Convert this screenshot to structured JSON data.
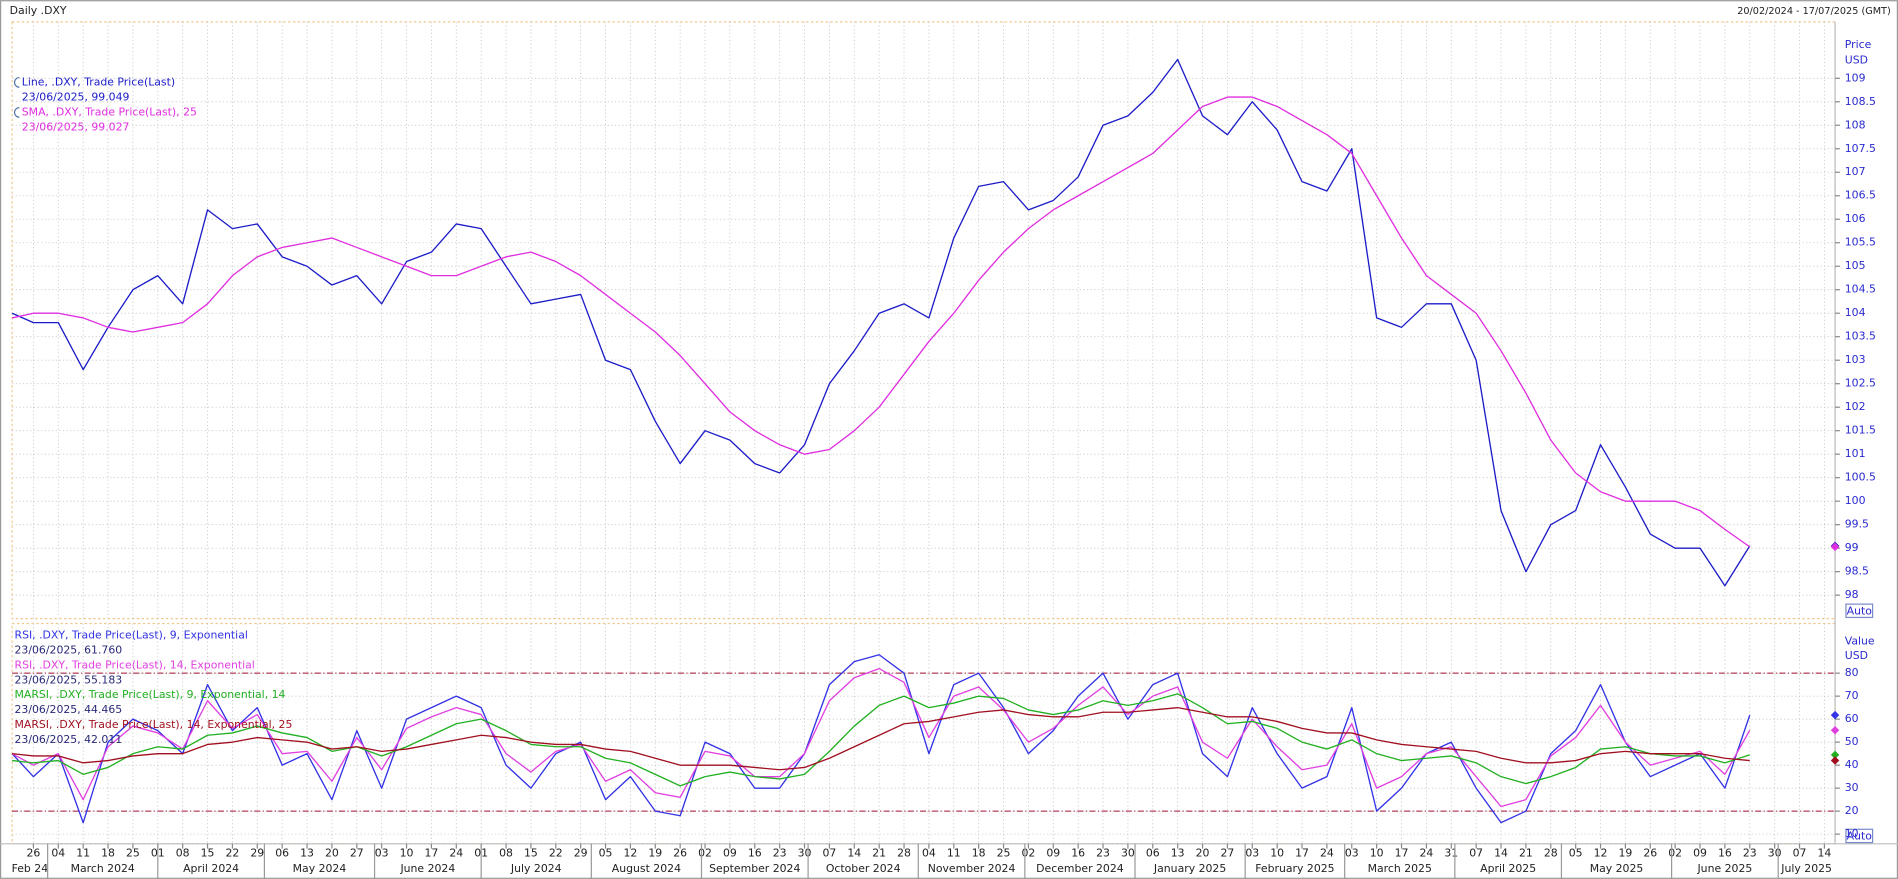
{
  "chart_data": [
    {
      "type": "line",
      "title": "Daily .DXY",
      "subtitle": "20/02/2024 - 17/07/2025 (GMT)",
      "y_label": "Price",
      "y_unit": "USD",
      "scale_button": "Auto",
      "xlim": [
        "2024-02-20",
        "2025-07-17"
      ],
      "ylim": [
        97.5,
        110.2
      ],
      "grid": true,
      "yticks": [
        98,
        98.5,
        99,
        99.5,
        100,
        100.5,
        101,
        101.5,
        102,
        102.5,
        103,
        103.5,
        104,
        104.5,
        105,
        105.5,
        106,
        106.5,
        107,
        107.5,
        108,
        108.5,
        109
      ],
      "x": [
        "2024-02-20",
        "2024-02-26",
        "2024-03-04",
        "2024-03-11",
        "2024-03-18",
        "2024-03-25",
        "2024-04-01",
        "2024-04-08",
        "2024-04-15",
        "2024-04-22",
        "2024-04-29",
        "2024-05-06",
        "2024-05-13",
        "2024-05-20",
        "2024-05-27",
        "2024-06-03",
        "2024-06-10",
        "2024-06-17",
        "2024-06-24",
        "2024-07-01",
        "2024-07-08",
        "2024-07-15",
        "2024-07-22",
        "2024-07-29",
        "2024-08-05",
        "2024-08-12",
        "2024-08-19",
        "2024-08-26",
        "2024-09-02",
        "2024-09-09",
        "2024-09-16",
        "2024-09-23",
        "2024-09-30",
        "2024-10-07",
        "2024-10-14",
        "2024-10-21",
        "2024-10-28",
        "2024-11-04",
        "2024-11-11",
        "2024-11-18",
        "2024-11-25",
        "2024-12-02",
        "2024-12-09",
        "2024-12-16",
        "2024-12-23",
        "2024-12-30",
        "2025-01-06",
        "2025-01-13",
        "2025-01-20",
        "2025-01-27",
        "2025-02-03",
        "2025-02-10",
        "2025-02-17",
        "2025-02-24",
        "2025-03-03",
        "2025-03-10",
        "2025-03-17",
        "2025-03-24",
        "2025-03-31",
        "2025-04-07",
        "2025-04-14",
        "2025-04-21",
        "2025-04-28",
        "2025-05-05",
        "2025-05-12",
        "2025-05-19",
        "2025-05-26",
        "2025-06-02",
        "2025-06-09",
        "2025-06-16",
        "2025-06-23"
      ],
      "series": [
        {
          "name": "Line, .DXY, Trade Price(Last)",
          "legend_detail": "23/06/2025, 99.049",
          "color": "#1c1cc8",
          "values": [
            104.0,
            103.8,
            103.8,
            102.8,
            103.7,
            104.5,
            104.8,
            104.2,
            106.2,
            105.8,
            105.9,
            105.2,
            105.0,
            104.6,
            104.8,
            104.2,
            105.1,
            105.3,
            105.9,
            105.8,
            105.0,
            104.2,
            104.3,
            104.4,
            103.0,
            102.8,
            101.7,
            100.8,
            101.5,
            101.3,
            100.8,
            100.6,
            101.2,
            102.5,
            103.2,
            104.0,
            104.2,
            103.9,
            105.6,
            106.7,
            106.8,
            106.2,
            106.4,
            106.9,
            108.0,
            108.2,
            108.7,
            109.4,
            108.2,
            107.8,
            108.5,
            107.9,
            106.8,
            106.6,
            107.5,
            103.9,
            103.7,
            104.2,
            104.2,
            103.0,
            99.8,
            98.5,
            99.5,
            99.8,
            101.2,
            100.3,
            99.3,
            99.0,
            99.0,
            98.2,
            99.049
          ]
        },
        {
          "name": "SMA, .DXY, Trade Price(Last), 25",
          "legend_detail": "23/06/2025, 99.027",
          "color": "#e02ee0",
          "values": [
            103.9,
            104.0,
            104.0,
            103.9,
            103.7,
            103.6,
            103.7,
            103.8,
            104.2,
            104.8,
            105.2,
            105.4,
            105.5,
            105.6,
            105.4,
            105.2,
            105.0,
            104.8,
            104.8,
            105.0,
            105.2,
            105.3,
            105.1,
            104.8,
            104.4,
            104.0,
            103.6,
            103.1,
            102.5,
            101.9,
            101.5,
            101.2,
            101.0,
            101.1,
            101.5,
            102.0,
            102.7,
            103.4,
            104.0,
            104.7,
            105.3,
            105.8,
            106.2,
            106.5,
            106.8,
            107.1,
            107.4,
            107.9,
            108.4,
            108.6,
            108.6,
            108.4,
            108.1,
            107.8,
            107.4,
            106.5,
            105.6,
            104.8,
            104.4,
            104.0,
            103.2,
            102.3,
            101.3,
            100.6,
            100.2,
            100.0,
            100.0,
            100.0,
            99.8,
            99.4,
            99.027
          ]
        }
      ]
    },
    {
      "type": "line",
      "y_label": "Value",
      "y_unit": "USD",
      "scale_button": "Auto",
      "xlim": [
        "2024-02-20",
        "2025-07-17"
      ],
      "ylim": [
        5.8,
        101.6
      ],
      "grid": true,
      "yticks": [
        10,
        20,
        30,
        40,
        50,
        60,
        70,
        80
      ],
      "ref_lines": [
        80,
        20
      ],
      "series": [
        {
          "name": "RSI, .DXY, Trade Price(Last),  9, Exponential",
          "legend_detail": "23/06/2025, 61.760",
          "color": "#3232e6",
          "values": [
            45,
            35,
            45,
            15,
            50,
            60,
            55,
            45,
            75,
            55,
            65,
            40,
            45,
            25,
            55,
            30,
            60,
            65,
            70,
            65,
            40,
            30,
            45,
            50,
            25,
            35,
            20,
            18,
            50,
            45,
            30,
            30,
            45,
            75,
            85,
            88,
            80,
            45,
            75,
            80,
            65,
            45,
            55,
            70,
            80,
            60,
            75,
            80,
            45,
            35,
            65,
            45,
            30,
            35,
            65,
            20,
            30,
            45,
            50,
            30,
            15,
            20,
            45,
            55,
            75,
            50,
            35,
            40,
            45,
            30,
            61.76
          ]
        },
        {
          "name": "RSI, .DXY, Trade Price(Last),  14, Exponential",
          "legend_detail": "23/06/2025, 55.183",
          "color": "#e040e0",
          "values": [
            45,
            40,
            45,
            25,
            48,
            57,
            54,
            47,
            68,
            56,
            62,
            45,
            46,
            33,
            52,
            38,
            56,
            61,
            65,
            62,
            45,
            37,
            46,
            49,
            33,
            38,
            28,
            26,
            46,
            44,
            35,
            35,
            45,
            68,
            78,
            82,
            76,
            52,
            70,
            74,
            64,
            50,
            56,
            66,
            74,
            62,
            70,
            74,
            50,
            43,
            60,
            48,
            38,
            40,
            58,
            30,
            35,
            45,
            48,
            35,
            22,
            25,
            44,
            52,
            66,
            50,
            40,
            43,
            46,
            36,
            55.183
          ]
        },
        {
          "name": "MARSI, .DXY, Trade Price(Last),  9, Exponential, 14",
          "legend_detail": "23/06/2025, 44.465",
          "color": "#22b022",
          "values": [
            42,
            41,
            42,
            36,
            39,
            45,
            48,
            47,
            53,
            54,
            57,
            54,
            52,
            46,
            48,
            44,
            48,
            53,
            58,
            60,
            55,
            49,
            48,
            48,
            43,
            41,
            36,
            31,
            35,
            37,
            35,
            34,
            36,
            46,
            57,
            66,
            70,
            65,
            67,
            70,
            69,
            64,
            62,
            64,
            68,
            66,
            68,
            71,
            65,
            58,
            59,
            56,
            50,
            47,
            51,
            45,
            42,
            43,
            44,
            41,
            35,
            32,
            35,
            39,
            47,
            48,
            45,
            44,
            44,
            41,
            44.465
          ]
        },
        {
          "name": "MARSI, .DXY, Trade Price(Last),  14, Exponential, 25",
          "legend_detail": "23/06/2025, 42.011",
          "color": "#a01020",
          "values": [
            45,
            44,
            44,
            41,
            42,
            44,
            45,
            45,
            49,
            50,
            52,
            51,
            50,
            47,
            48,
            46,
            47,
            49,
            51,
            53,
            52,
            50,
            49,
            49,
            47,
            46,
            43,
            40,
            40,
            40,
            39,
            38,
            39,
            43,
            48,
            53,
            58,
            59,
            61,
            63,
            64,
            62,
            61,
            61,
            63,
            63,
            64,
            65,
            63,
            61,
            61,
            59,
            56,
            54,
            54,
            51,
            49,
            48,
            47,
            46,
            43,
            41,
            41,
            42,
            45,
            46,
            45,
            45,
            45,
            43,
            42.011
          ]
        }
      ],
      "xticks": [
        {
          "value": "2024-02-26",
          "label": "26"
        },
        {
          "value": "2024-03-04",
          "label": "04"
        },
        {
          "value": "2024-03-11",
          "label": "11"
        },
        {
          "value": "2024-03-18",
          "label": "18"
        },
        {
          "value": "2024-03-25",
          "label": "25"
        },
        {
          "value": "2024-04-01",
          "label": "01"
        },
        {
          "value": "2024-04-08",
          "label": "08"
        },
        {
          "value": "2024-04-15",
          "label": "15"
        },
        {
          "value": "2024-04-22",
          "label": "22"
        },
        {
          "value": "2024-04-29",
          "label": "29"
        },
        {
          "value": "2024-05-06",
          "label": "06"
        },
        {
          "value": "2024-05-13",
          "label": "13"
        },
        {
          "value": "2024-05-20",
          "label": "20"
        },
        {
          "value": "2024-05-27",
          "label": "27"
        },
        {
          "value": "2024-06-03",
          "label": "03"
        },
        {
          "value": "2024-06-10",
          "label": "10"
        },
        {
          "value": "2024-06-17",
          "label": "17"
        },
        {
          "value": "2024-06-24",
          "label": "24"
        },
        {
          "value": "2024-07-01",
          "label": "01"
        },
        {
          "value": "2024-07-08",
          "label": "08"
        },
        {
          "value": "2024-07-15",
          "label": "15"
        },
        {
          "value": "2024-07-22",
          "label": "22"
        },
        {
          "value": "2024-07-29",
          "label": "29"
        },
        {
          "value": "2024-08-05",
          "label": "05"
        },
        {
          "value": "2024-08-12",
          "label": "12"
        },
        {
          "value": "2024-08-19",
          "label": "19"
        },
        {
          "value": "2024-08-26",
          "label": "26"
        },
        {
          "value": "2024-09-02",
          "label": "02"
        },
        {
          "value": "2024-09-09",
          "label": "09"
        },
        {
          "value": "2024-09-16",
          "label": "16"
        },
        {
          "value": "2024-09-23",
          "label": "23"
        },
        {
          "value": "2024-09-30",
          "label": "30"
        },
        {
          "value": "2024-10-07",
          "label": "07"
        },
        {
          "value": "2024-10-14",
          "label": "14"
        },
        {
          "value": "2024-10-21",
          "label": "21"
        },
        {
          "value": "2024-10-28",
          "label": "28"
        },
        {
          "value": "2024-11-04",
          "label": "04"
        },
        {
          "value": "2024-11-11",
          "label": "11"
        },
        {
          "value": "2024-11-18",
          "label": "18"
        },
        {
          "value": "2024-11-25",
          "label": "25"
        },
        {
          "value": "2024-12-02",
          "label": "02"
        },
        {
          "value": "2024-12-09",
          "label": "09"
        },
        {
          "value": "2024-12-16",
          "label": "16"
        },
        {
          "value": "2024-12-23",
          "label": "23"
        },
        {
          "value": "2024-12-30",
          "label": "30"
        },
        {
          "value": "2025-01-06",
          "label": "06"
        },
        {
          "value": "2025-01-13",
          "label": "13"
        },
        {
          "value": "2025-01-20",
          "label": "20"
        },
        {
          "value": "2025-01-27",
          "label": "27"
        },
        {
          "value": "2025-02-03",
          "label": "03"
        },
        {
          "value": "2025-02-10",
          "label": "10"
        },
        {
          "value": "2025-02-17",
          "label": "17"
        },
        {
          "value": "2025-02-24",
          "label": "24"
        },
        {
          "value": "2025-03-03",
          "label": "03"
        },
        {
          "value": "2025-03-10",
          "label": "10"
        },
        {
          "value": "2025-03-17",
          "label": "17"
        },
        {
          "value": "2025-03-24",
          "label": "24"
        },
        {
          "value": "2025-03-31",
          "label": "31"
        },
        {
          "value": "2025-04-07",
          "label": "07"
        },
        {
          "value": "2025-04-14",
          "label": "14"
        },
        {
          "value": "2025-04-21",
          "label": "21"
        },
        {
          "value": "2025-04-28",
          "label": "28"
        },
        {
          "value": "2025-05-05",
          "label": "05"
        },
        {
          "value": "2025-05-12",
          "label": "12"
        },
        {
          "value": "2025-05-19",
          "label": "19"
        },
        {
          "value": "2025-05-26",
          "label": "26"
        },
        {
          "value": "2025-06-02",
          "label": "02"
        },
        {
          "value": "2025-06-09",
          "label": "09"
        },
        {
          "value": "2025-06-16",
          "label": "16"
        },
        {
          "value": "2025-06-23",
          "label": "23"
        },
        {
          "value": "2025-06-30",
          "label": "30"
        },
        {
          "value": "2025-07-07",
          "label": "07"
        },
        {
          "value": "2025-07-14",
          "label": "14"
        }
      ],
      "month_ticks": [
        {
          "value": "2024-02-01",
          "label": "Feb 24"
        },
        {
          "value": "2024-03-01",
          "label": "March 2024"
        },
        {
          "value": "2024-04-01",
          "label": "April 2024"
        },
        {
          "value": "2024-05-01",
          "label": "May 2024"
        },
        {
          "value": "2024-06-01",
          "label": "June 2024"
        },
        {
          "value": "2024-07-01",
          "label": "July 2024"
        },
        {
          "value": "2024-08-01",
          "label": "August 2024"
        },
        {
          "value": "2024-09-01",
          "label": "September 2024"
        },
        {
          "value": "2024-10-01",
          "label": "October 2024"
        },
        {
          "value": "2024-11-01",
          "label": "November 2024"
        },
        {
          "value": "2024-12-01",
          "label": "December 2024"
        },
        {
          "value": "2025-01-01",
          "label": "January 2025"
        },
        {
          "value": "2025-02-01",
          "label": "February 2025"
        },
        {
          "value": "2025-03-01",
          "label": "March 2025"
        },
        {
          "value": "2025-04-01",
          "label": "April 2025"
        },
        {
          "value": "2025-05-01",
          "label": "May 2025"
        },
        {
          "value": "2025-06-01",
          "label": "June 2025"
        },
        {
          "value": "2025-07-01",
          "label": "July 2025"
        }
      ]
    }
  ]
}
